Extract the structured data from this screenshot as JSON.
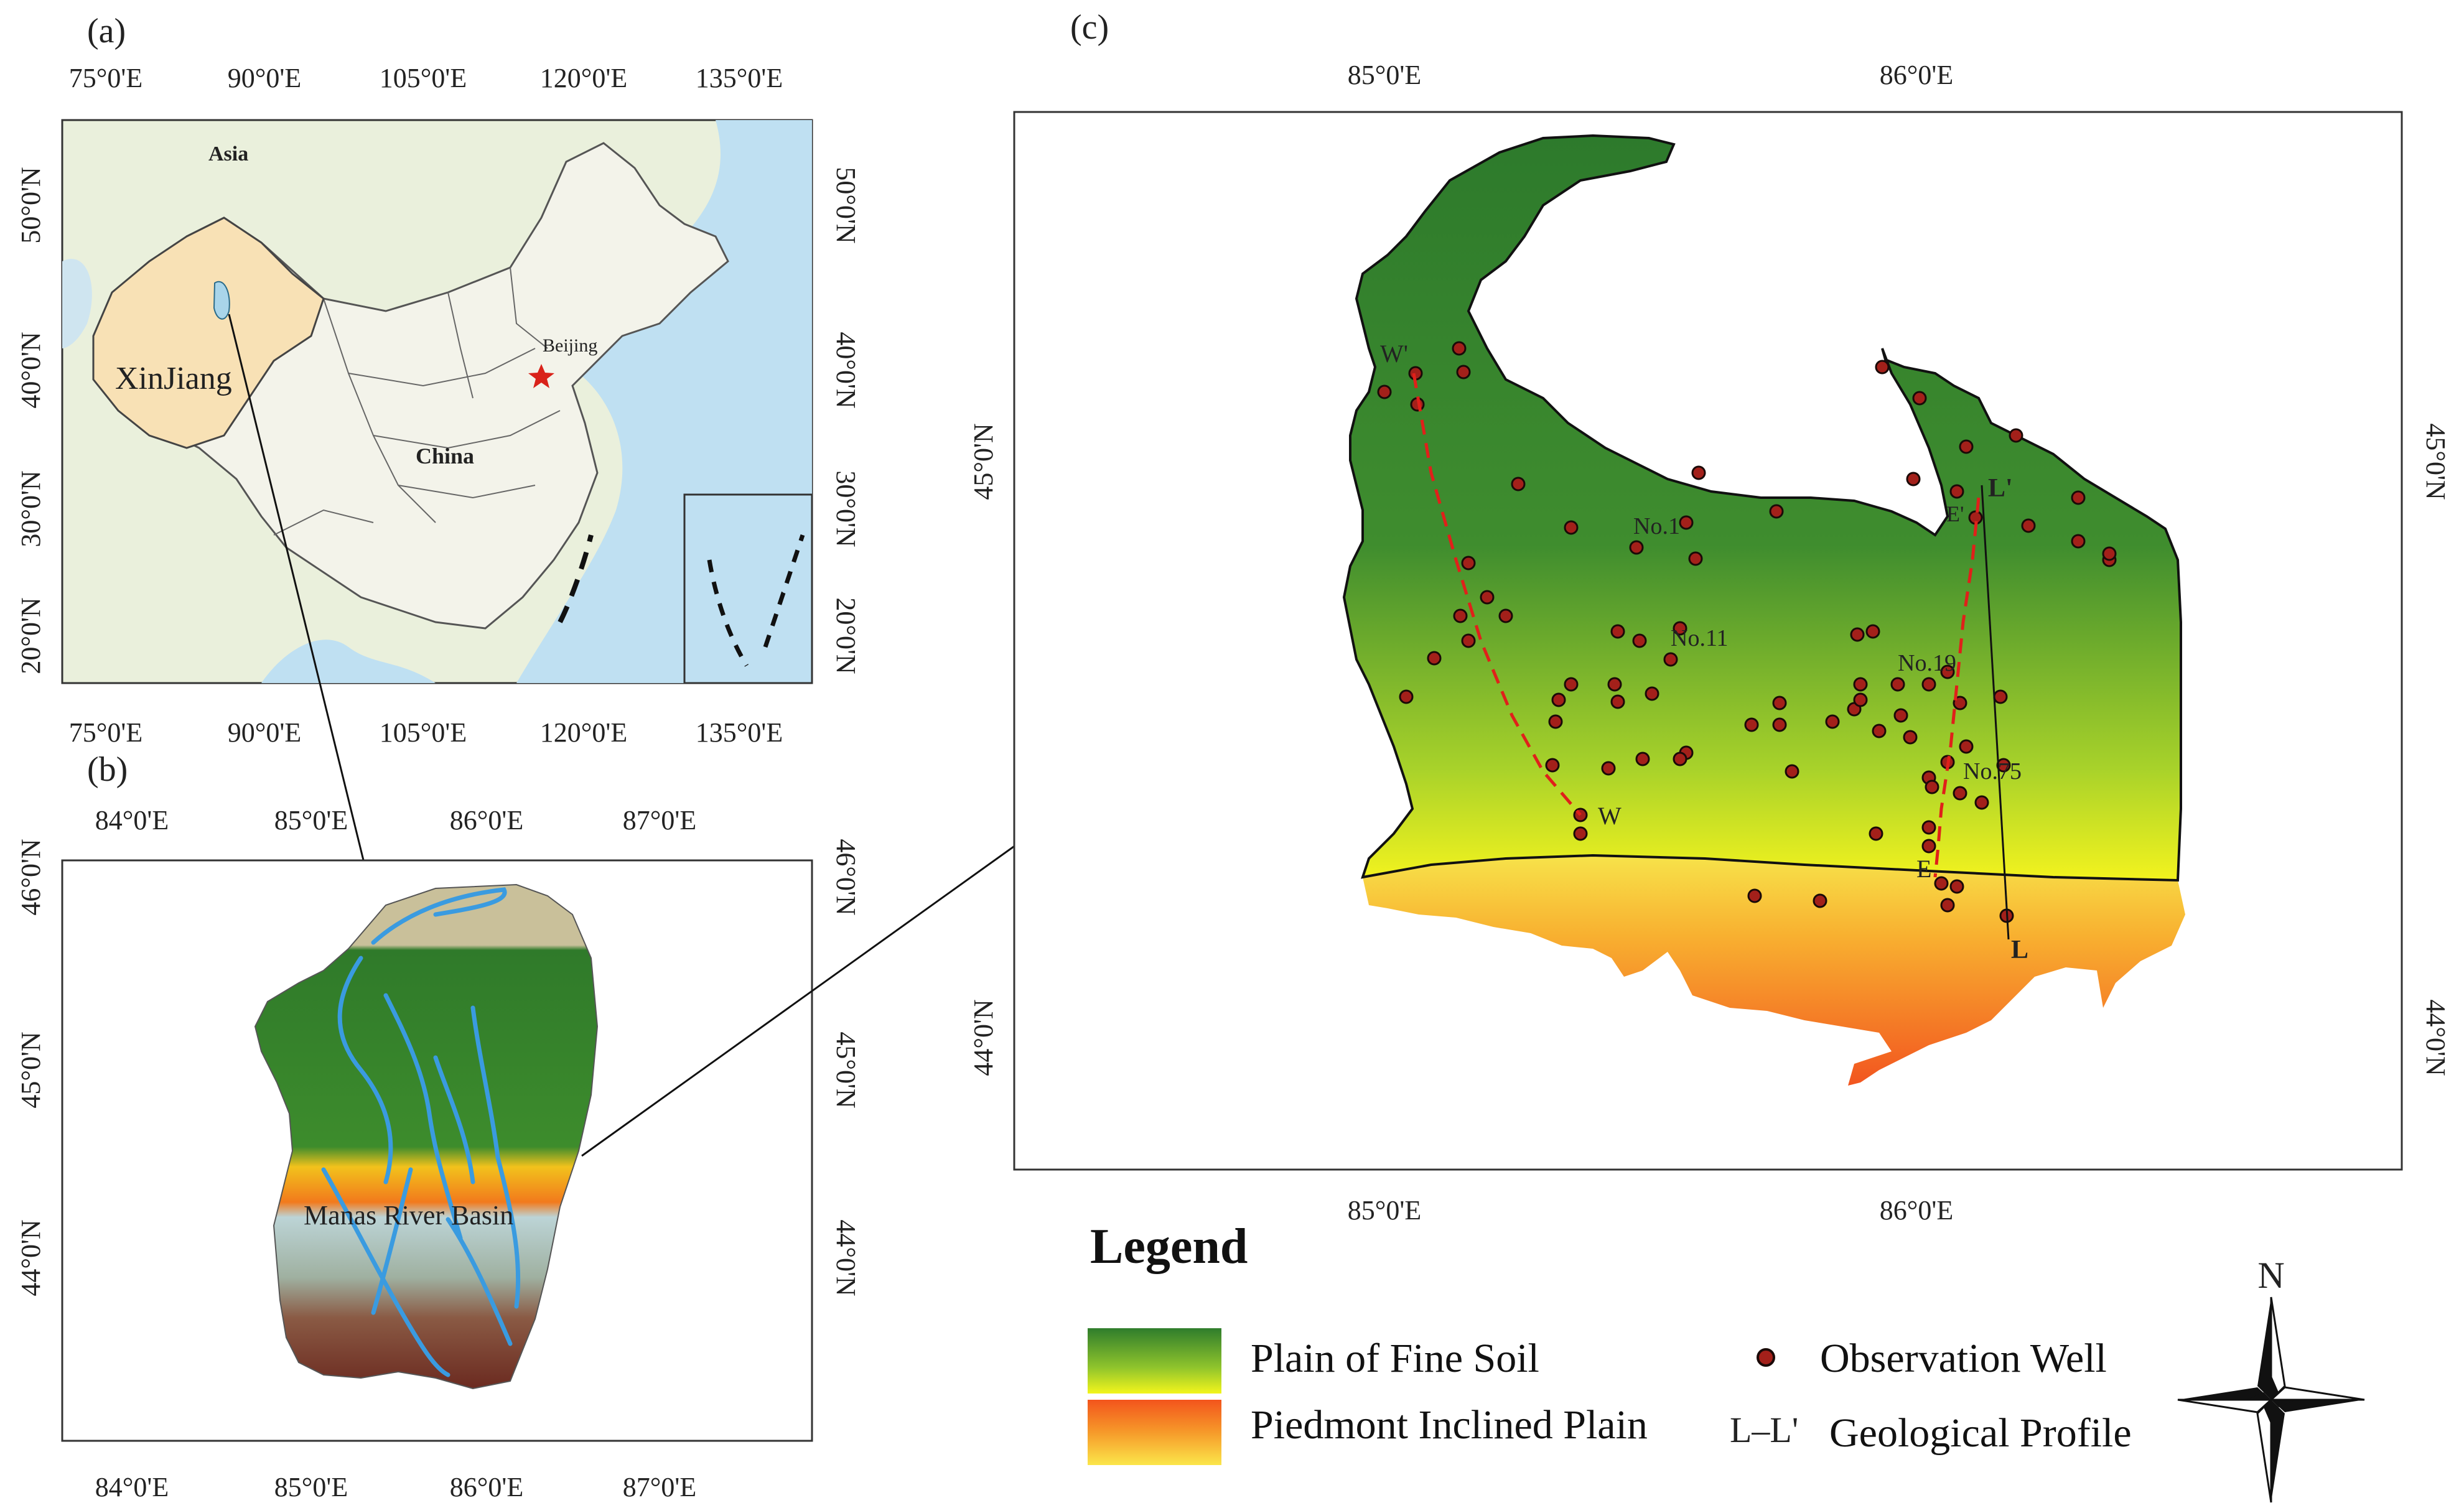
{
  "panels": {
    "a": {
      "label": "(a)",
      "top_ticks": [
        "75°0'E",
        "90°0'E",
        "105°0'E",
        "120°0'E",
        "135°0'E"
      ],
      "bottom_ticks": [
        "75°0'E",
        "90°0'E",
        "105°0'E",
        "120°0'E",
        "135°0'E"
      ],
      "left_ticks": [
        "50°0'N",
        "40°0'N",
        "30°0'N",
        "20°0'N"
      ],
      "right_ticks": [
        "50°0'N",
        "40°0'N",
        "30°0'N",
        "20°0'N"
      ],
      "labels": {
        "asia": "Asia",
        "beijing": "Beijing",
        "china": "China",
        "xinjiang": "XinJiang"
      },
      "colors": {
        "land": "#eaf0dc",
        "water": "#bfe0f2",
        "xinjiang": "#f8e1b5"
      }
    },
    "b": {
      "label": "(b)",
      "top_ticks": [
        "84°0'E",
        "85°0'E",
        "86°0'E",
        "87°0'E"
      ],
      "bottom_ticks": [
        "84°0'E",
        "85°0'E",
        "86°0'E",
        "87°0'E"
      ],
      "left_ticks": [
        "46°0'N",
        "45°0'N",
        "44°0'N"
      ],
      "right_ticks": [
        "46°0'N",
        "45°0'N",
        "44°0'N"
      ],
      "basin_label": "Manas River Basin"
    },
    "c": {
      "label": "(c)",
      "top_ticks": [
        "85°0'E",
        "86°0'E"
      ],
      "bottom_ticks": [
        "85°0'E",
        "86°0'E"
      ],
      "left_ticks": [
        "45°0'N",
        "44°0'N"
      ],
      "right_ticks": [
        "45°0'N",
        "44°0'N"
      ],
      "well_labels": [
        "No.1",
        "No.11",
        "No.19",
        "No.75"
      ],
      "profiles": {
        "w_start": "W'",
        "w_end": "W",
        "e_start": "E'",
        "e_end": "E",
        "l_start": "L'",
        "l_end": "L"
      },
      "colors": {
        "fine_soil_top": "#2f7d2c",
        "fine_soil_bottom": "#f2f21c",
        "piedmont_top": "#f5a623",
        "piedmont_bottom": "#f04b1a",
        "well": "#a3201a",
        "dashed": "#e0201a"
      }
    }
  },
  "legend": {
    "title": "Legend",
    "items": {
      "fine_soil": "Plain of Fine Soil",
      "piedmont": "Piedmont Inclined Plain",
      "well": "Observation Well",
      "profile_symbol": "L–L'",
      "profile": "Geological Profile"
    }
  },
  "compass": {
    "north": "N"
  }
}
